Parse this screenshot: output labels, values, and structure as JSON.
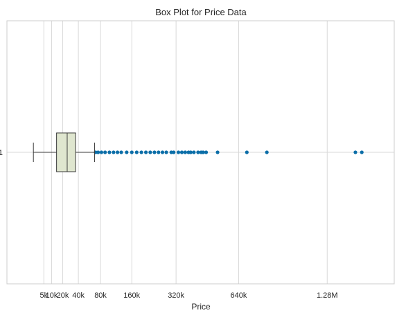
{
  "chart_data": {
    "type": "box",
    "title": "Box Plot for Price Data",
    "xlabel": "Price",
    "ylabel": "",
    "xscale": "sqrt",
    "xlim": [
      0,
      1550000
    ],
    "grid": true,
    "orientation": "horizontal",
    "x_ticks": [
      {
        "value": 5000,
        "label": "5k"
      },
      {
        "value": 10000,
        "label": "10k"
      },
      {
        "value": 20000,
        "label": "20k"
      },
      {
        "value": 40000,
        "label": "40k"
      },
      {
        "value": 80000,
        "label": "80k"
      },
      {
        "value": 160000,
        "label": "160k"
      },
      {
        "value": 320000,
        "label": "320k"
      },
      {
        "value": 640000,
        "label": "640k"
      },
      {
        "value": 1280000,
        "label": "1.28M"
      }
    ],
    "y_tick_label": "1",
    "box": {
      "whisker_low": 1000,
      "q1": 14000,
      "median": 25000,
      "q3": 36000,
      "whisker_high": 68000
    },
    "outliers": [
      70000,
      75000,
      82000,
      90000,
      100000,
      110000,
      120000,
      130000,
      145000,
      160000,
      175000,
      190000,
      205000,
      220000,
      235000,
      250000,
      265000,
      280000,
      300000,
      310000,
      330000,
      345000,
      360000,
      375000,
      385000,
      400000,
      420000,
      435000,
      445000,
      460000,
      520000,
      690000,
      820000,
      1530000,
      1590000
    ],
    "colors": {
      "box_fill": "#dfe6cf",
      "outlier": "#0b6ea8",
      "grid": "#d9d9d9",
      "frame": "#cccccc",
      "line": "#3a3a3a"
    }
  }
}
